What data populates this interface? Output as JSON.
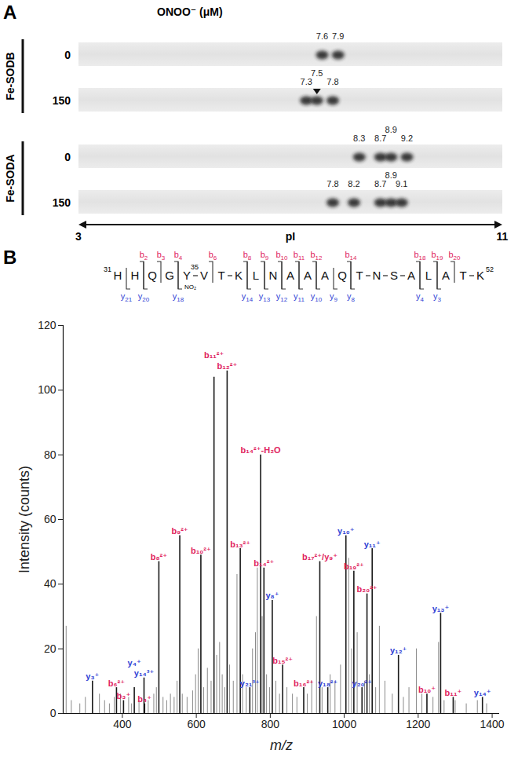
{
  "chart_data": [
    {
      "panel": "A",
      "type": "gel",
      "title": "ONOO⁻ (μM)",
      "x_label": "pI",
      "xlim": [
        3,
        11
      ],
      "xticks": [
        3,
        11
      ],
      "lanes": [
        {
          "group": "Fe-SODB",
          "dose": 0,
          "spots": [
            7.6,
            7.9
          ]
        },
        {
          "group": "Fe-SODB",
          "dose": 150,
          "spots": [
            7.3,
            7.5,
            7.8
          ],
          "arrow": 7.5
        },
        {
          "group": "Fe-SODA",
          "dose": 0,
          "spots": [
            8.3,
            8.7,
            8.9,
            9.2
          ]
        },
        {
          "group": "Fe-SODA",
          "dose": 150,
          "spots": [
            7.8,
            8.2,
            8.7,
            8.9,
            9.1
          ]
        }
      ]
    },
    {
      "panel": "B",
      "type": "spectrum",
      "x_label": "m/z",
      "y_label": "Intensity (counts)",
      "xlim": [
        240,
        1420
      ],
      "xticks": [
        400,
        600,
        800,
        1000,
        1200,
        1400
      ],
      "ylim": [
        0,
        120
      ],
      "yticks": [
        0,
        20,
        40,
        60,
        80,
        100,
        120
      ],
      "sequence": {
        "start": 31,
        "end": 52,
        "residues": [
          "H",
          "H",
          "Q",
          "G",
          "Y",
          "V",
          "T",
          "K",
          "L",
          "N",
          "A",
          "A",
          "A",
          "Q",
          "T",
          "N",
          "S",
          "A",
          "L",
          "A",
          "T",
          "K"
        ],
        "modification": {
          "position": 35,
          "label": "NO₂"
        }
      },
      "series": [
        {
          "name": "b",
          "color": "#e0245e",
          "sites": [
            2,
            3,
            4,
            6,
            8,
            9,
            10,
            11,
            12,
            14,
            18,
            19,
            20
          ],
          "x": [
            384.16,
            403.18,
            460.21,
            498.74,
            555.28,
            612.3,
            647.82,
            683.34,
            718.86,
            773.88,
            782.88,
            833.41,
            890.43,
            933.95,
            1026.01,
            1061.52,
            1223.59,
            1294.63
          ],
          "values": [
            8,
            4,
            3,
            47,
            55,
            49,
            104,
            106,
            51,
            80,
            45,
            15,
            8,
            47,
            44,
            37,
            6,
            5
          ],
          "labels": [
            "b₆²⁺",
            "b₃⁺",
            "b₄⁺",
            "b₈²⁺",
            "b₉²⁺",
            "b₁₀²⁺",
            "b₁₁²⁺",
            "b₁₂²⁺",
            "b₁₃²⁺",
            "b₁₄²⁺-H₂O",
            "b₁₄²⁺",
            "b₁₅²⁺",
            "b₁₆²⁺",
            "b₁₇²⁺/y₉⁺",
            "b₁₉²⁺",
            "b₂₀²⁺",
            "b₁₀⁺",
            "b₁₁⁺"
          ]
        },
        {
          "name": "y",
          "color": "#2f3fd4",
          "sites": [
            21,
            20,
            18,
            14,
            13,
            12,
            11,
            10,
            9,
            8,
            4,
            3
          ],
          "x": [
            319.2,
            432.28,
            458.58,
            744.72,
            805.44,
            955.5,
            1004.54,
            1048.04,
            1075.57,
            1146.61,
            1260.65,
            1373.74
          ],
          "values": [
            10,
            8,
            11,
            8,
            35,
            8,
            55,
            8,
            51,
            18,
            31,
            5
          ],
          "labels": [
            "y₃⁺",
            "y₄⁺",
            "y₁₄³⁺",
            "y₂₁³⁺",
            "y₈⁺",
            "y₁₈²⁺",
            "y₁₀⁺",
            "y₂₀²⁺",
            "y₁₁⁺",
            "y₁₂⁺",
            "y₁₃⁺",
            "y₁₄⁺"
          ]
        },
        {
          "color": "#8a8a8a",
          "x": [
            248,
            262,
            285,
            300,
            338,
            352,
            365,
            378,
            395,
            417,
            425,
            445,
            470,
            485,
            492,
            510,
            520,
            530,
            540,
            548,
            562,
            575,
            590,
            598,
            605,
            620,
            630,
            640,
            655,
            663,
            670,
            677,
            690,
            700,
            710,
            725,
            735,
            752,
            760,
            765,
            778,
            790,
            798,
            815,
            825,
            845,
            860,
            872,
            900,
            912,
            925,
            940,
            962,
            975,
            990,
            1012,
            1020,
            1035,
            1055,
            1068,
            1085,
            1095,
            1110,
            1130,
            1160,
            1175,
            1195,
            1210,
            1240,
            1255,
            1270,
            1300,
            1330,
            1360,
            1385
          ],
          "values": [
            27,
            4,
            3,
            5,
            6,
            4,
            3,
            5,
            6,
            5,
            3,
            4,
            4,
            6,
            8,
            5,
            4,
            6,
            5,
            10,
            6,
            5,
            7,
            12,
            20,
            8,
            14,
            10,
            18,
            22,
            12,
            8,
            15,
            10,
            43,
            12,
            8,
            20,
            25,
            45,
            30,
            12,
            8,
            10,
            6,
            8,
            6,
            5,
            6,
            10,
            30,
            8,
            12,
            10,
            15,
            48,
            20,
            25,
            10,
            12,
            8,
            27,
            10,
            6,
            5,
            8,
            20,
            6,
            5,
            22,
            4,
            4,
            3,
            4,
            3
          ]
        }
      ]
    }
  ]
}
